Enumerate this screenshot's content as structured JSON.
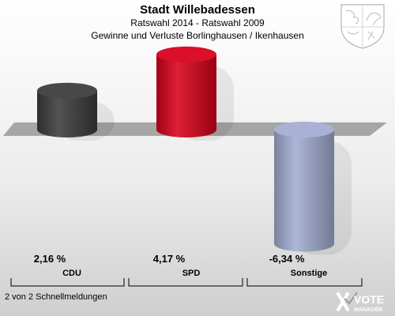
{
  "header": {
    "title": "Stadt Willebadessen",
    "subtitle": "Ratswahl 2014 - Ratswahl 2009",
    "subtitle2": "Gewinne und Verluste Borlinghausen / Ikenhausen"
  },
  "footer": {
    "status": "2 von 2 Schnellmeldungen"
  },
  "logo": {
    "line1": "VOTE",
    "line2": "MANAGER"
  },
  "icons": {
    "crest": "coat-of-arms-icon",
    "logo": "vote-manager-logo-icon"
  },
  "chart_data": {
    "type": "bar",
    "categories": [
      "CDU",
      "SPD",
      "Sonstige"
    ],
    "values": [
      2.16,
      4.17,
      -6.34
    ],
    "value_labels": [
      "2,16 %",
      "4,17 %",
      "-6,34 %"
    ],
    "colors": [
      "#3c3c3c",
      "#d9001b",
      "#a3add2"
    ],
    "title": "Stadt Willebadessen",
    "subtitle": "Ratswahl 2014 - Ratswahl 2009",
    "ylim": [
      -6.34,
      4.17
    ],
    "grid": false,
    "legend": "none"
  }
}
